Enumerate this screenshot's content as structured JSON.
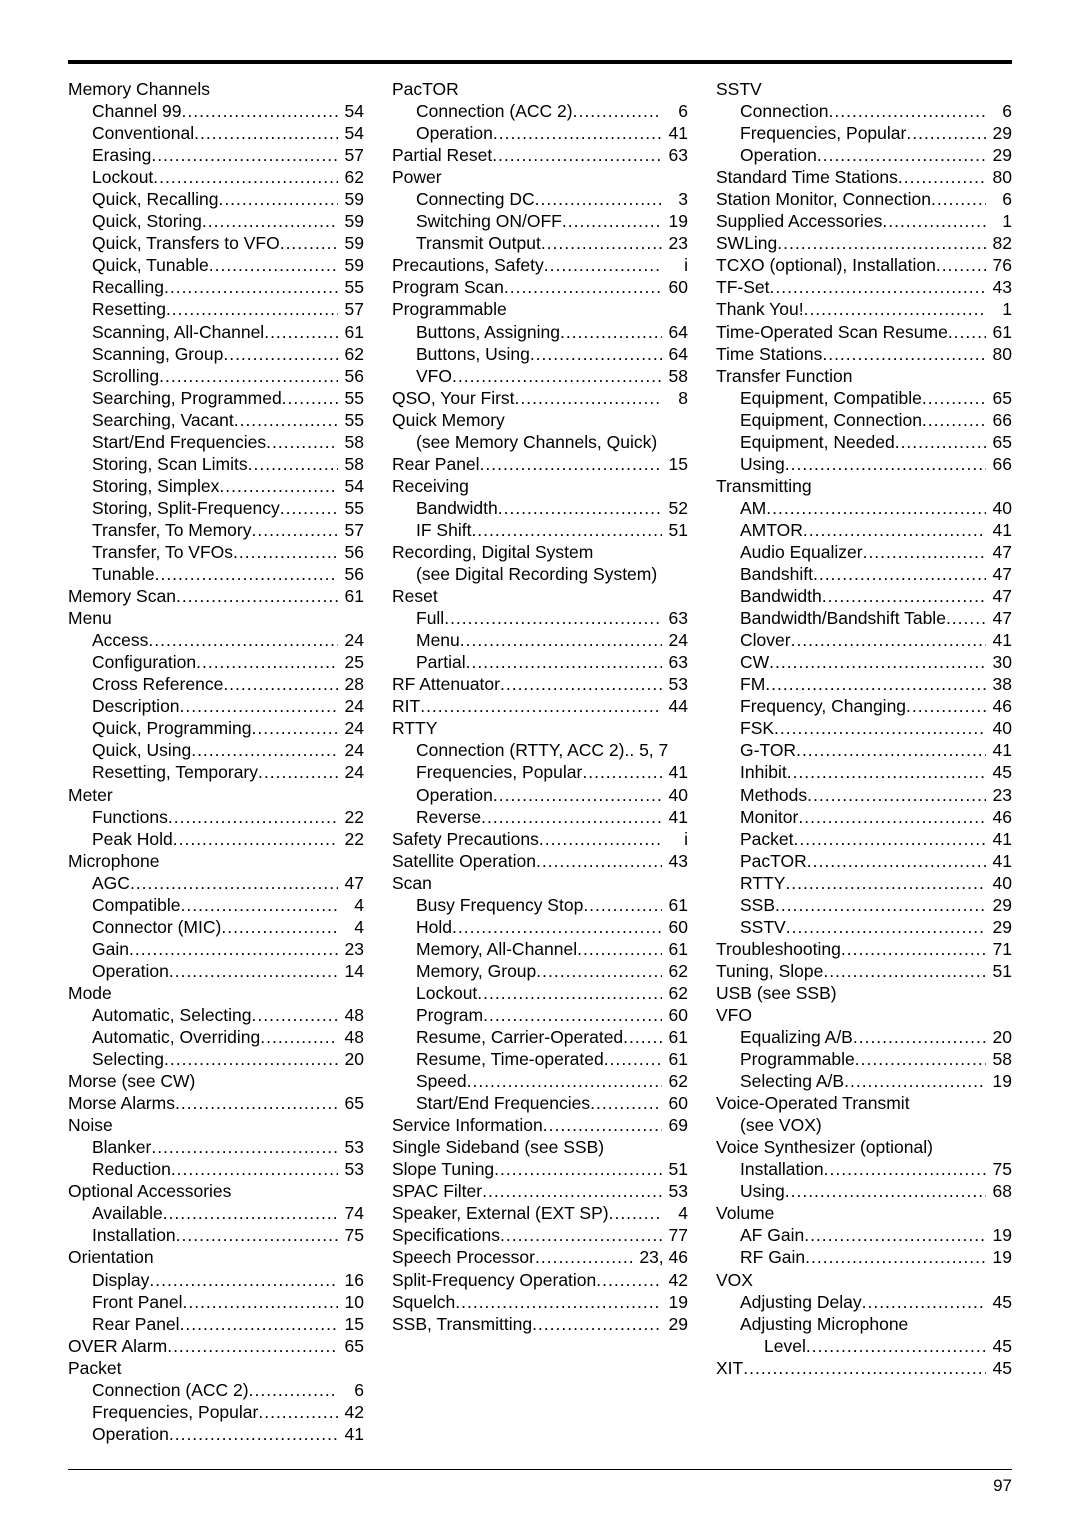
{
  "pageNumber": "97",
  "columns": [
    [
      {
        "label": "Memory Channels",
        "indent": 0
      },
      {
        "label": "Channel 99",
        "indent": 1,
        "page": "54"
      },
      {
        "label": "Conventional",
        "indent": 1,
        "page": "54"
      },
      {
        "label": "Erasing",
        "indent": 1,
        "page": "57"
      },
      {
        "label": "Lockout",
        "indent": 1,
        "page": "62"
      },
      {
        "label": "Quick, Recalling",
        "indent": 1,
        "page": "59"
      },
      {
        "label": "Quick, Storing",
        "indent": 1,
        "page": "59"
      },
      {
        "label": "Quick, Transfers to VFO",
        "indent": 1,
        "page": "59"
      },
      {
        "label": "Quick, Tunable",
        "indent": 1,
        "page": "59"
      },
      {
        "label": "Recalling",
        "indent": 1,
        "page": "55"
      },
      {
        "label": "Resetting",
        "indent": 1,
        "page": "57"
      },
      {
        "label": "Scanning, All-Channel",
        "indent": 1,
        "page": "61"
      },
      {
        "label": "Scanning, Group",
        "indent": 1,
        "page": "62"
      },
      {
        "label": "Scrolling",
        "indent": 1,
        "page": "56"
      },
      {
        "label": "Searching, Programmed",
        "indent": 1,
        "page": "55"
      },
      {
        "label": "Searching, Vacant",
        "indent": 1,
        "page": "55"
      },
      {
        "label": "Start/End Frequencies",
        "indent": 1,
        "page": "58"
      },
      {
        "label": "Storing, Scan Limits",
        "indent": 1,
        "page": "58"
      },
      {
        "label": "Storing, Simplex",
        "indent": 1,
        "page": "54"
      },
      {
        "label": "Storing, Split-Frequency",
        "indent": 1,
        "page": "55"
      },
      {
        "label": "Transfer, To Memory",
        "indent": 1,
        "page": "57"
      },
      {
        "label": "Transfer, To VFOs",
        "indent": 1,
        "page": "56"
      },
      {
        "label": "Tunable",
        "indent": 1,
        "page": "56"
      },
      {
        "label": "Memory Scan",
        "indent": 0,
        "page": "61"
      },
      {
        "label": "Menu",
        "indent": 0
      },
      {
        "label": "Access",
        "indent": 1,
        "page": "24"
      },
      {
        "label": "Configuration",
        "indent": 1,
        "page": "25"
      },
      {
        "label": "Cross Reference",
        "indent": 1,
        "page": "28"
      },
      {
        "label": "Description",
        "indent": 1,
        "page": "24"
      },
      {
        "label": "Quick, Programming",
        "indent": 1,
        "page": "24"
      },
      {
        "label": "Quick, Using",
        "indent": 1,
        "page": "24"
      },
      {
        "label": "Resetting, Temporary",
        "indent": 1,
        "page": "24"
      },
      {
        "label": "Meter",
        "indent": 0
      },
      {
        "label": "Functions",
        "indent": 1,
        "page": "22"
      },
      {
        "label": "Peak Hold",
        "indent": 1,
        "page": "22"
      },
      {
        "label": "Microphone",
        "indent": 0
      },
      {
        "label": "AGC",
        "indent": 1,
        "page": "47"
      },
      {
        "label": "Compatible",
        "indent": 1,
        "page": "4"
      },
      {
        "label": "Connector (MIC)",
        "indent": 1,
        "page": "4"
      },
      {
        "label": "Gain",
        "indent": 1,
        "page": "23"
      },
      {
        "label": "Operation",
        "indent": 1,
        "page": "14"
      },
      {
        "label": "Mode",
        "indent": 0
      },
      {
        "label": "Automatic, Selecting",
        "indent": 1,
        "page": "48"
      },
      {
        "label": "Automatic, Overriding",
        "indent": 1,
        "page": "48"
      },
      {
        "label": "Selecting",
        "indent": 1,
        "page": "20"
      },
      {
        "label": "Morse (see CW)",
        "indent": 0
      },
      {
        "label": "Morse Alarms",
        "indent": 0,
        "page": "65"
      },
      {
        "label": "Noise",
        "indent": 0
      },
      {
        "label": "Blanker",
        "indent": 1,
        "page": "53"
      },
      {
        "label": "Reduction",
        "indent": 1,
        "page": "53"
      },
      {
        "label": "Optional Accessories",
        "indent": 0
      },
      {
        "label": "Available",
        "indent": 1,
        "page": "74"
      },
      {
        "label": "Installation",
        "indent": 1,
        "page": "75"
      },
      {
        "label": "Orientation",
        "indent": 0
      },
      {
        "label": "Display",
        "indent": 1,
        "page": "16"
      },
      {
        "label": "Front Panel",
        "indent": 1,
        "page": "10"
      },
      {
        "label": "Rear Panel",
        "indent": 1,
        "page": "15"
      },
      {
        "label": "OVER Alarm",
        "indent": 0,
        "page": "65"
      },
      {
        "label": "Packet",
        "indent": 0
      },
      {
        "label": "Connection (ACC 2)",
        "indent": 1,
        "page": "6"
      },
      {
        "label": "Frequencies, Popular",
        "indent": 1,
        "page": "42"
      },
      {
        "label": "Operation",
        "indent": 1,
        "page": "41"
      }
    ],
    [
      {
        "label": "PacTOR",
        "indent": 0
      },
      {
        "label": "Connection (ACC 2)",
        "indent": 1,
        "page": "6"
      },
      {
        "label": "Operation",
        "indent": 1,
        "page": "41"
      },
      {
        "label": "Partial Reset",
        "indent": 0,
        "page": "63"
      },
      {
        "label": "Power",
        "indent": 0
      },
      {
        "label": "Connecting DC",
        "indent": 1,
        "page": "3"
      },
      {
        "label": "Switching ON/OFF",
        "indent": 1,
        "page": "19"
      },
      {
        "label": "Transmit Output",
        "indent": 1,
        "page": "23"
      },
      {
        "label": "Precautions, Safety",
        "indent": 0,
        "page": "i"
      },
      {
        "label": "Program Scan",
        "indent": 0,
        "page": "60"
      },
      {
        "label": "Programmable",
        "indent": 0
      },
      {
        "label": "Buttons, Assigning",
        "indent": 1,
        "page": "64"
      },
      {
        "label": "Buttons, Using",
        "indent": 1,
        "page": "64"
      },
      {
        "label": "VFO",
        "indent": 1,
        "page": "58"
      },
      {
        "label": "QSO, Your First",
        "indent": 0,
        "page": "8"
      },
      {
        "label": "Quick Memory",
        "indent": 0
      },
      {
        "label": "(see Memory Channels, Quick)",
        "indent": 1
      },
      {
        "label": "Rear Panel",
        "indent": 0,
        "page": "15"
      },
      {
        "label": "Receiving",
        "indent": 0
      },
      {
        "label": "Bandwidth",
        "indent": 1,
        "page": "52"
      },
      {
        "label": "IF Shift",
        "indent": 1,
        "page": "51"
      },
      {
        "label": "Recording, Digital System",
        "indent": 0
      },
      {
        "label": "(see Digital Recording System)",
        "indent": 1
      },
      {
        "label": "Reset",
        "indent": 0
      },
      {
        "label": "Full",
        "indent": 1,
        "page": "63"
      },
      {
        "label": "Menu",
        "indent": 1,
        "page": "24"
      },
      {
        "label": "Partial",
        "indent": 1,
        "page": "63"
      },
      {
        "label": "RF Attenuator",
        "indent": 0,
        "page": "53"
      },
      {
        "label": "RIT",
        "indent": 0,
        "page": "44"
      },
      {
        "label": "RTTY",
        "indent": 0
      },
      {
        "label": "Connection (RTTY, ACC 2)",
        "indent": 1,
        "page_raw": ".. 5, 7"
      },
      {
        "label": "Frequencies, Popular",
        "indent": 1,
        "page": "41"
      },
      {
        "label": "Operation",
        "indent": 1,
        "page": "40"
      },
      {
        "label": "Reverse",
        "indent": 1,
        "page": "41"
      },
      {
        "label": "Safety Precautions",
        "indent": 0,
        "page": "i"
      },
      {
        "label": "Satellite Operation",
        "indent": 0,
        "page": "43"
      },
      {
        "label": "Scan",
        "indent": 0
      },
      {
        "label": "Busy Frequency Stop",
        "indent": 1,
        "page": "61"
      },
      {
        "label": "Hold",
        "indent": 1,
        "page": "60"
      },
      {
        "label": "Memory, All-Channel",
        "indent": 1,
        "page": "61"
      },
      {
        "label": "Memory, Group",
        "indent": 1,
        "page": "62"
      },
      {
        "label": "Lockout",
        "indent": 1,
        "page": "62"
      },
      {
        "label": "Program",
        "indent": 1,
        "page": "60"
      },
      {
        "label": "Resume, Carrier-Operated",
        "indent": 1,
        "page": "61"
      },
      {
        "label": "Resume, Time-operated",
        "indent": 1,
        "page": "61"
      },
      {
        "label": "Speed",
        "indent": 1,
        "page": "62"
      },
      {
        "label": "Start/End Frequencies",
        "indent": 1,
        "page": "60"
      },
      {
        "label": "Service Information",
        "indent": 0,
        "page": "69"
      },
      {
        "label": "Single Sideband (see SSB)",
        "indent": 0
      },
      {
        "label": "Slope Tuning",
        "indent": 0,
        "page": "51"
      },
      {
        "label": "SPAC Filter",
        "indent": 0,
        "page": "53"
      },
      {
        "label": "Speaker, External (EXT SP)",
        "indent": 0,
        "page": "4"
      },
      {
        "label": "Specifications",
        "indent": 0,
        "page": "77"
      },
      {
        "label": "Speech Processor",
        "indent": 0,
        "page": "23, 46"
      },
      {
        "label": "Split-Frequency Operation",
        "indent": 0,
        "page": "42"
      },
      {
        "label": "Squelch",
        "indent": 0,
        "page": "19"
      },
      {
        "label": "SSB, Transmitting",
        "indent": 0,
        "page": "29"
      }
    ],
    [
      {
        "label": "SSTV",
        "indent": 0
      },
      {
        "label": "Connection",
        "indent": 1,
        "page": "6"
      },
      {
        "label": "Frequencies, Popular",
        "indent": 1,
        "page": "29"
      },
      {
        "label": "Operation",
        "indent": 1,
        "page": "29"
      },
      {
        "label": "Standard Time Stations",
        "indent": 0,
        "page": "80"
      },
      {
        "label": "Station Monitor, Connection",
        "indent": 0,
        "page": "6"
      },
      {
        "label": "Supplied Accessories",
        "indent": 0,
        "page": "1"
      },
      {
        "label": "SWLing",
        "indent": 0,
        "page": "82"
      },
      {
        "label": "TCXO (optional), Installation",
        "indent": 0,
        "page": "76"
      },
      {
        "label": "TF-Set",
        "indent": 0,
        "page": "43"
      },
      {
        "label": "Thank You!",
        "indent": 0,
        "page": "1"
      },
      {
        "label": "Time-Operated Scan Resume",
        "indent": 0,
        "page": "61"
      },
      {
        "label": "Time Stations",
        "indent": 0,
        "page": "80"
      },
      {
        "label": "Transfer Function",
        "indent": 0
      },
      {
        "label": "Equipment, Compatible",
        "indent": 1,
        "page": "65"
      },
      {
        "label": "Equipment, Connection",
        "indent": 1,
        "page": "66"
      },
      {
        "label": "Equipment, Needed",
        "indent": 1,
        "page": "65"
      },
      {
        "label": "Using",
        "indent": 1,
        "page": "66"
      },
      {
        "label": "Transmitting",
        "indent": 0
      },
      {
        "label": "AM",
        "indent": 1,
        "page": "40"
      },
      {
        "label": "AMTOR",
        "indent": 1,
        "page": "41"
      },
      {
        "label": "Audio Equalizer",
        "indent": 1,
        "page": "47"
      },
      {
        "label": "Bandshift",
        "indent": 1,
        "page": "47"
      },
      {
        "label": "Bandwidth",
        "indent": 1,
        "page": "47"
      },
      {
        "label": "Bandwidth/Bandshift Table",
        "indent": 1,
        "page": "47"
      },
      {
        "label": "Clover",
        "indent": 1,
        "page": "41"
      },
      {
        "label": "CW",
        "indent": 1,
        "page": "30"
      },
      {
        "label": "FM",
        "indent": 1,
        "page": "38"
      },
      {
        "label": "Frequency, Changing",
        "indent": 1,
        "page": "46"
      },
      {
        "label": "FSK",
        "indent": 1,
        "page": "40"
      },
      {
        "label": "G-TOR",
        "indent": 1,
        "page": "41"
      },
      {
        "label": "Inhibit",
        "indent": 1,
        "page": "45"
      },
      {
        "label": "Methods",
        "indent": 1,
        "page": "23"
      },
      {
        "label": "Monitor",
        "indent": 1,
        "page": "46"
      },
      {
        "label": "Packet",
        "indent": 1,
        "page": "41"
      },
      {
        "label": "PacTOR",
        "indent": 1,
        "page": "41"
      },
      {
        "label": "RTTY",
        "indent": 1,
        "page": "40"
      },
      {
        "label": "SSB",
        "indent": 1,
        "page": "29"
      },
      {
        "label": "SSTV",
        "indent": 1,
        "page": "29"
      },
      {
        "label": "Troubleshooting",
        "indent": 0,
        "page": "71"
      },
      {
        "label": "Tuning, Slope",
        "indent": 0,
        "page": "51"
      },
      {
        "label": "USB (see SSB)",
        "indent": 0
      },
      {
        "label": "VFO",
        "indent": 0
      },
      {
        "label": "Equalizing A/B",
        "indent": 1,
        "page": "20"
      },
      {
        "label": "Programmable",
        "indent": 1,
        "page": "58"
      },
      {
        "label": "Selecting A/B",
        "indent": 1,
        "page": "19"
      },
      {
        "label": "Voice-Operated Transmit",
        "indent": 0
      },
      {
        "label": "(see VOX)",
        "indent": 1
      },
      {
        "label": "Voice Synthesizer (optional)",
        "indent": 0
      },
      {
        "label": "Installation",
        "indent": 1,
        "page": "75"
      },
      {
        "label": "Using",
        "indent": 1,
        "page": "68"
      },
      {
        "label": "Volume",
        "indent": 0
      },
      {
        "label": "AF Gain",
        "indent": 1,
        "page": "19"
      },
      {
        "label": "RF Gain",
        "indent": 1,
        "page": "19"
      },
      {
        "label": "VOX",
        "indent": 0
      },
      {
        "label": "Adjusting Delay",
        "indent": 1,
        "page": "45"
      },
      {
        "label": "Adjusting Microphone",
        "indent": 1
      },
      {
        "label": "Level",
        "indent": 2,
        "page": "45"
      },
      {
        "label": "XIT",
        "indent": 0,
        "page": "45"
      }
    ]
  ]
}
